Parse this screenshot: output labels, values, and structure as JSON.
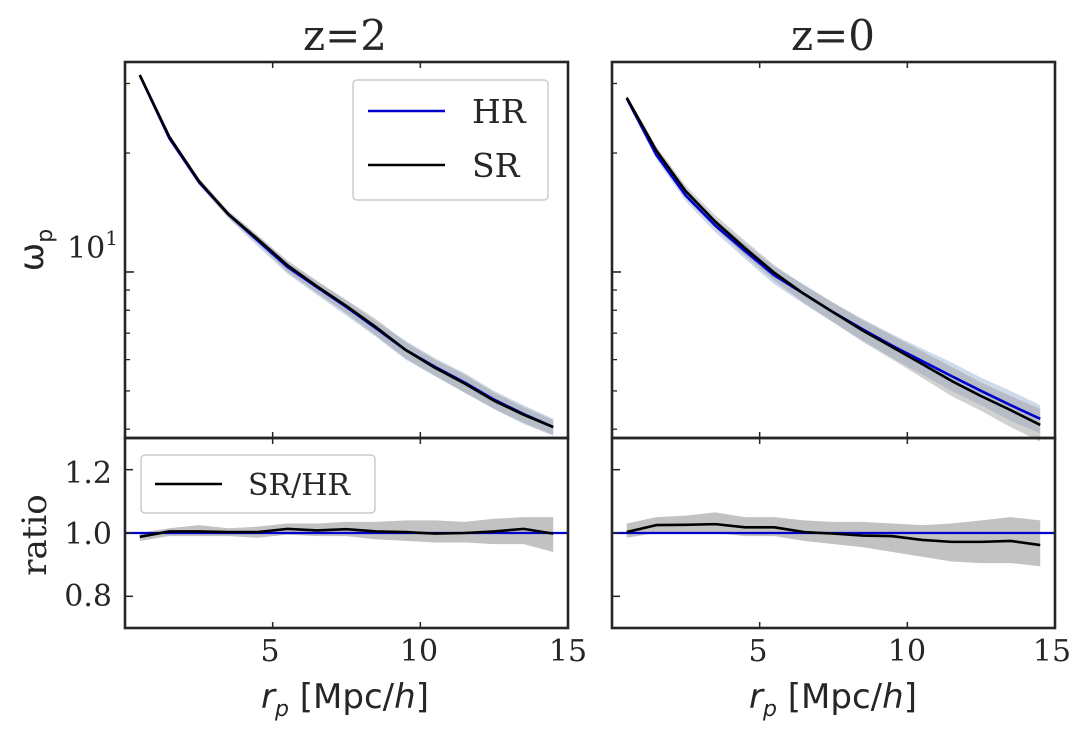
{
  "colors": {
    "hr": "#0000cc",
    "sr": "#000000",
    "band_hr": "#9db5d8",
    "band_sr": "#999999",
    "frame": "#262626",
    "text": "#262626"
  },
  "chart_data": [
    {
      "panel": "left",
      "type": "line",
      "title": "z=2",
      "ylabel": "ω",
      "ylabel_sub": "p",
      "yscale": "log",
      "ylim": [
        3.8,
        34
      ],
      "xlim": [
        0,
        15
      ],
      "ytick_labels": [
        {
          "value": 10,
          "base": "10",
          "exp": "1"
        }
      ],
      "legend": [
        {
          "label": "HR"
        },
        {
          "label": "SR"
        }
      ],
      "x": [
        0.5,
        1.5,
        2.5,
        3.5,
        4.5,
        5.5,
        6.5,
        7.5,
        8.5,
        9.5,
        10.5,
        11.5,
        12.5,
        13.5,
        14.5
      ],
      "series": [
        {
          "name": "HR",
          "values": [
            31.5,
            21.8,
            16.9,
            14.0,
            12.0,
            10.3,
            9.15,
            8.15,
            7.2,
            6.35,
            5.75,
            5.25,
            4.75,
            4.37,
            4.05
          ],
          "band_low": [
            31.3,
            21.6,
            16.7,
            13.7,
            11.6,
            9.9,
            8.75,
            7.75,
            6.85,
            6.0,
            5.45,
            4.95,
            4.5,
            4.12,
            3.85
          ],
          "band_high": [
            31.7,
            22.0,
            17.1,
            14.2,
            12.3,
            10.6,
            9.45,
            8.45,
            7.5,
            6.7,
            6.05,
            5.55,
            5.0,
            4.6,
            4.25
          ]
        },
        {
          "name": "SR",
          "values": [
            31.5,
            22.0,
            17.0,
            14.0,
            12.1,
            10.4,
            9.2,
            8.2,
            7.25,
            6.35,
            5.72,
            5.22,
            4.72,
            4.35,
            4.05
          ],
          "band_low": [
            31.2,
            21.7,
            16.6,
            13.7,
            11.8,
            10.0,
            8.85,
            7.85,
            6.9,
            6.05,
            5.45,
            4.95,
            4.5,
            4.15,
            3.87
          ],
          "band_high": [
            31.8,
            22.2,
            17.3,
            14.3,
            12.4,
            10.7,
            9.5,
            8.5,
            7.6,
            6.65,
            6.0,
            5.5,
            4.95,
            4.55,
            4.22
          ]
        }
      ]
    },
    {
      "panel": "right",
      "type": "line",
      "title": "z=0",
      "yscale": "log",
      "ylim": [
        3.8,
        34
      ],
      "xlim": [
        0,
        15
      ],
      "x": [
        0.5,
        1.5,
        2.5,
        3.5,
        4.5,
        5.5,
        6.5,
        7.5,
        8.5,
        9.5,
        10.5,
        11.5,
        12.5,
        13.5,
        14.5
      ],
      "series": [
        {
          "name": "HR",
          "values": [
            27.5,
            19.8,
            15.6,
            13.1,
            11.3,
            9.8,
            8.8,
            7.9,
            7.15,
            6.5,
            5.95,
            5.45,
            5.0,
            4.6,
            4.25
          ],
          "band_low": [
            27.0,
            19.3,
            15.1,
            12.6,
            10.8,
            9.3,
            8.3,
            7.45,
            6.7,
            6.05,
            5.5,
            5.0,
            4.6,
            4.2,
            3.9
          ],
          "band_high": [
            28.0,
            20.3,
            16.1,
            13.6,
            11.8,
            10.3,
            9.3,
            8.35,
            7.6,
            6.95,
            6.4,
            5.9,
            5.4,
            5.0,
            4.6
          ]
        },
        {
          "name": "SR",
          "values": [
            27.6,
            20.3,
            16.0,
            13.4,
            11.5,
            9.95,
            8.8,
            7.9,
            7.1,
            6.45,
            5.85,
            5.3,
            4.85,
            4.47,
            4.1
          ],
          "band_low": [
            27.2,
            19.8,
            15.5,
            12.9,
            11.0,
            9.5,
            8.35,
            7.45,
            6.65,
            6.0,
            5.4,
            4.85,
            4.45,
            4.05,
            3.72
          ],
          "band_high": [
            28.0,
            20.8,
            16.5,
            13.9,
            12.0,
            10.4,
            9.25,
            8.35,
            7.55,
            6.9,
            6.3,
            5.75,
            5.25,
            4.85,
            4.5
          ]
        }
      ]
    },
    {
      "panel": "left-ratio",
      "type": "line",
      "ylabel": "ratio",
      "xlabel_main": "r",
      "xlabel_sub": "p",
      "xlabel_unit": " [Mpc/",
      "xlabel_h": "h",
      "xlabel_end": "]",
      "xlim": [
        0,
        15
      ],
      "ylim": [
        0.7,
        1.3
      ],
      "yticks": [
        0.8,
        1.0,
        1.2
      ],
      "ytick_labels": [
        "0.8",
        "1.0",
        "1.2"
      ],
      "xticks": [
        5,
        10,
        15
      ],
      "xtick_labels": [
        "5",
        "10",
        "15"
      ],
      "reference_line": 1.0,
      "legend": [
        {
          "label": "SR/HR"
        }
      ],
      "x": [
        0.5,
        1.5,
        2.5,
        3.5,
        4.5,
        5.5,
        6.5,
        7.5,
        8.5,
        9.5,
        10.5,
        11.5,
        12.5,
        13.5,
        14.5
      ],
      "series": [
        {
          "name": "SR/HR",
          "values": [
            0.988,
            1.005,
            1.005,
            1.003,
            1.003,
            1.013,
            1.008,
            1.012,
            1.005,
            1.003,
            0.998,
            1.0,
            1.005,
            1.013,
            0.998
          ],
          "band_low": [
            0.975,
            0.99,
            0.99,
            0.99,
            0.985,
            0.995,
            0.99,
            0.99,
            0.98,
            0.975,
            0.97,
            0.97,
            0.965,
            0.965,
            0.94
          ],
          "band_high": [
            1.0,
            1.015,
            1.025,
            1.015,
            1.02,
            1.03,
            1.03,
            1.035,
            1.035,
            1.04,
            1.04,
            1.035,
            1.045,
            1.05,
            1.05
          ]
        }
      ]
    },
    {
      "panel": "right-ratio",
      "type": "line",
      "xlabel_main": "r",
      "xlabel_sub": "p",
      "xlabel_unit": " [Mpc/",
      "xlabel_h": "h",
      "xlabel_end": "]",
      "xlim": [
        0,
        15
      ],
      "ylim": [
        0.7,
        1.3
      ],
      "xticks": [
        5,
        10,
        15
      ],
      "xtick_labels": [
        "5",
        "10",
        "15"
      ],
      "reference_line": 1.0,
      "x": [
        0.5,
        1.5,
        2.5,
        3.5,
        4.5,
        5.5,
        6.5,
        7.5,
        8.5,
        9.5,
        10.5,
        11.5,
        12.5,
        13.5,
        14.5
      ],
      "series": [
        {
          "name": "SR/HR",
          "values": [
            1.003,
            1.025,
            1.026,
            1.028,
            1.018,
            1.018,
            1.003,
            0.998,
            0.992,
            0.99,
            0.978,
            0.972,
            0.972,
            0.975,
            0.962
          ],
          "band_low": [
            0.985,
            1.0,
            1.0,
            1.0,
            0.99,
            0.99,
            0.975,
            0.965,
            0.955,
            0.94,
            0.925,
            0.91,
            0.905,
            0.905,
            0.895
          ],
          "band_high": [
            1.03,
            1.05,
            1.055,
            1.065,
            1.05,
            1.05,
            1.04,
            1.035,
            1.035,
            1.03,
            1.025,
            1.03,
            1.04,
            1.05,
            1.04
          ]
        }
      ]
    }
  ]
}
